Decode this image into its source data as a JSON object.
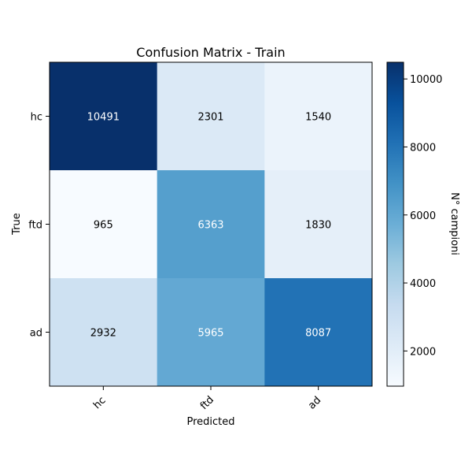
{
  "chart_data": {
    "type": "heatmap",
    "title": "Confusion Matrix - Train",
    "xlabel": "Predicted",
    "ylabel": "True",
    "x_categories": [
      "hc",
      "ftd",
      "ad"
    ],
    "y_categories": [
      "hc",
      "ftd",
      "ad"
    ],
    "values": [
      [
        10491,
        2301,
        1540
      ],
      [
        965,
        6363,
        1830
      ],
      [
        2932,
        5965,
        8087
      ]
    ],
    "colormap": "Blues",
    "colorbar": {
      "label": "N° campioni",
      "range": [
        965,
        10491
      ],
      "ticks": [
        2000,
        4000,
        6000,
        8000,
        10000
      ]
    }
  }
}
